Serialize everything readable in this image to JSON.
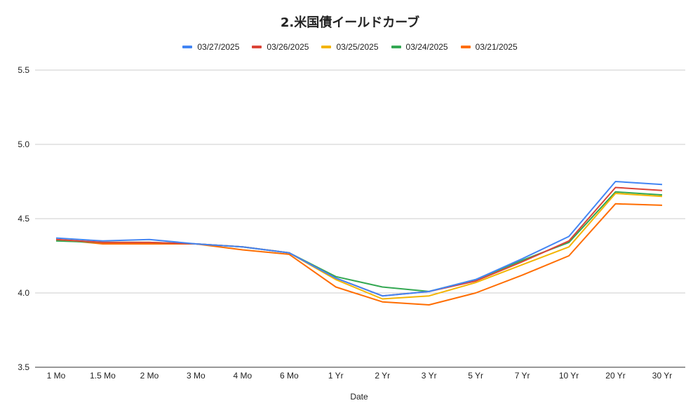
{
  "chart_data": {
    "type": "line",
    "title": "2.米国債イールドカーブ",
    "xlabel": "Date",
    "ylabel": "",
    "ylim": [
      3.5,
      5.5
    ],
    "yticks": [
      "3.5",
      "4.0",
      "4.5",
      "5.0",
      "5.5"
    ],
    "grid": true,
    "legend_position": "top",
    "categories": [
      "1 Mo",
      "1.5 Mo",
      "2 Mo",
      "3 Mo",
      "4 Mo",
      "6 Mo",
      "1 Yr",
      "2 Yr",
      "3 Yr",
      "5 Yr",
      "7 Yr",
      "10 Yr",
      "20 Yr",
      "30 Yr"
    ],
    "series": [
      {
        "name": "03/27/2025",
        "color": "#4285f4",
        "values": [
          4.37,
          4.35,
          4.36,
          4.33,
          4.31,
          4.27,
          4.1,
          3.98,
          4.01,
          4.09,
          4.23,
          4.38,
          4.75,
          4.73
        ]
      },
      {
        "name": "03/26/2025",
        "color": "#db4437",
        "values": [
          4.36,
          4.34,
          4.34,
          4.33,
          4.31,
          4.27,
          4.1,
          3.98,
          4.01,
          4.08,
          4.21,
          4.35,
          4.71,
          4.69
        ]
      },
      {
        "name": "03/25/2025",
        "color": "#f4b400",
        "values": [
          4.36,
          4.34,
          4.34,
          4.33,
          4.31,
          4.27,
          4.09,
          3.96,
          3.98,
          4.07,
          4.19,
          4.31,
          4.67,
          4.65
        ]
      },
      {
        "name": "03/24/2025",
        "color": "#34a853",
        "values": [
          4.35,
          4.34,
          4.34,
          4.33,
          4.31,
          4.27,
          4.11,
          4.04,
          4.01,
          4.09,
          4.22,
          4.34,
          4.68,
          4.66
        ]
      },
      {
        "name": "03/21/2025",
        "color": "#ff6d01",
        "values": [
          4.36,
          4.33,
          4.33,
          4.33,
          4.29,
          4.26,
          4.04,
          3.94,
          3.92,
          4.0,
          4.12,
          4.25,
          4.6,
          4.59
        ]
      }
    ]
  }
}
